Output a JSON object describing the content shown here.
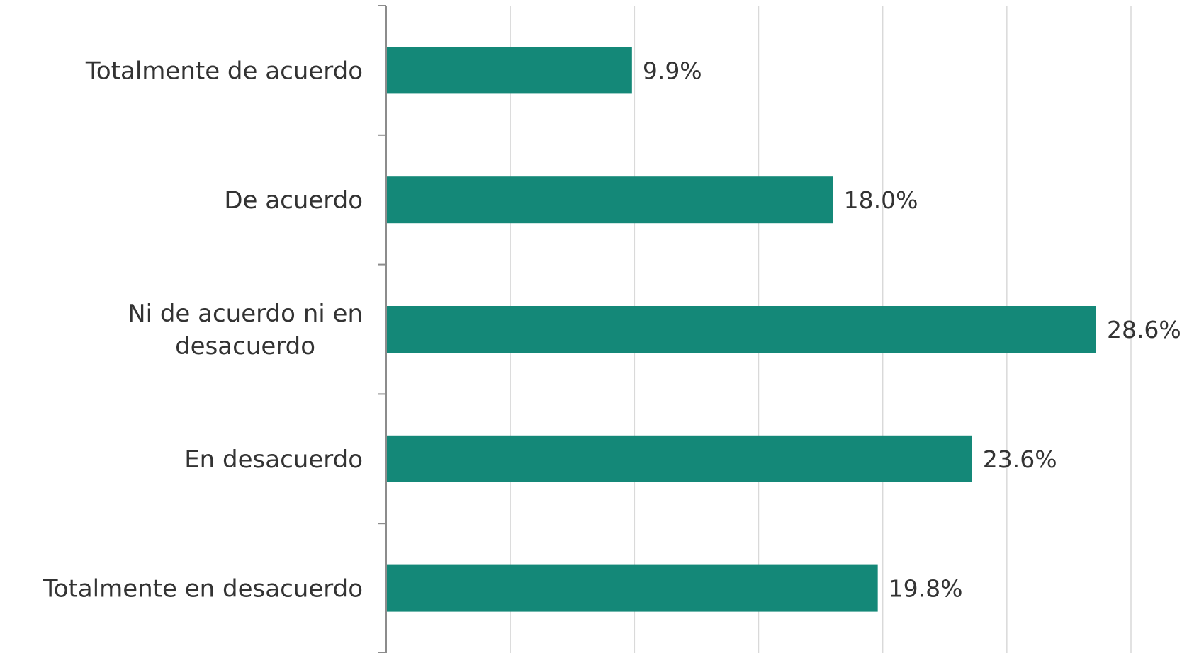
{
  "chart_data": {
    "type": "bar",
    "orientation": "horizontal",
    "categories": [
      "Totalmente de acuerdo",
      "De acuerdo",
      "Ni de acuerdo ni en desacuerdo",
      "En desacuerdo",
      "Totalmente en desacuerdo"
    ],
    "category_lines": [
      [
        "Totalmente de acuerdo"
      ],
      [
        "De acuerdo"
      ],
      [
        "Ni de acuerdo ni en",
        "desacuerdo"
      ],
      [
        "En desacuerdo"
      ],
      [
        "Totalmente en desacuerdo"
      ]
    ],
    "values": [
      9.9,
      18.0,
      28.6,
      23.6,
      19.8
    ],
    "value_labels": [
      "9.9%",
      "18.0%",
      "28.6%",
      "23.6%",
      "19.8%"
    ],
    "xlim": [
      0,
      30
    ],
    "grid_step": 5,
    "grid": true,
    "legend": false,
    "title": "",
    "xlabel": "",
    "ylabel": "",
    "colors": {
      "bar": "#148878",
      "grid": "#d9d9d9",
      "axis": "#8c8c8c",
      "text": "#333333"
    }
  }
}
